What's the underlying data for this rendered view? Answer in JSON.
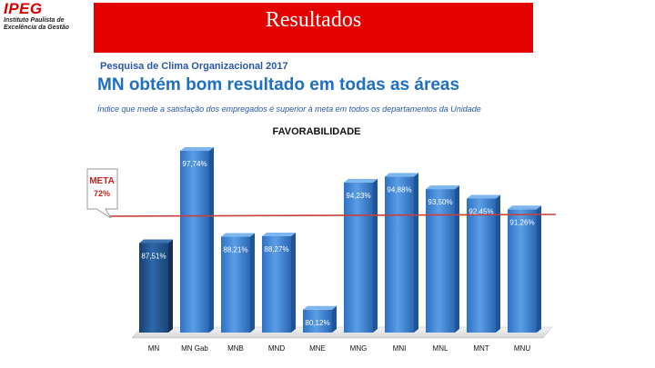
{
  "logo": {
    "name": "IPEG",
    "line1": "Instituto Paulista de",
    "line2": "Excelência da Gestão"
  },
  "banner": {
    "title": "Resultados"
  },
  "header": {
    "survey": "Pesquisa de Clima Organizacional 2017",
    "headline": "MN obtém bom resultado em todas as áreas",
    "subline": "Índice que mede a satisfação dos empregados é superior à meta em todos os departamentos da Unidade"
  },
  "colors": {
    "bar": "#3f86d6",
    "bar_first": "#1f4f88",
    "meta_line": "#c8403a",
    "brand_red": "#e50000"
  },
  "chart_data": {
    "type": "bar",
    "title": "FAVORABILIDADE",
    "categories": [
      "MN",
      "MN Gab",
      "MNB",
      "MND",
      "MNE",
      "MNG",
      "MNI",
      "MNL",
      "MNT",
      "MNU"
    ],
    "values": [
      87.51,
      97.74,
      88.21,
      88.27,
      80.12,
      94.23,
      94.88,
      93.5,
      92.45,
      91.26
    ],
    "value_labels": [
      "87,51%",
      "97,74%",
      "88,21%",
      "88,27%",
      "80,12%",
      "94,23%",
      "94,88%",
      "93,50%",
      "92,45%",
      "91,26%"
    ],
    "ylim": [
      0,
      100
    ],
    "meta": {
      "label": "META",
      "value": 72,
      "value_label": "72%"
    }
  }
}
